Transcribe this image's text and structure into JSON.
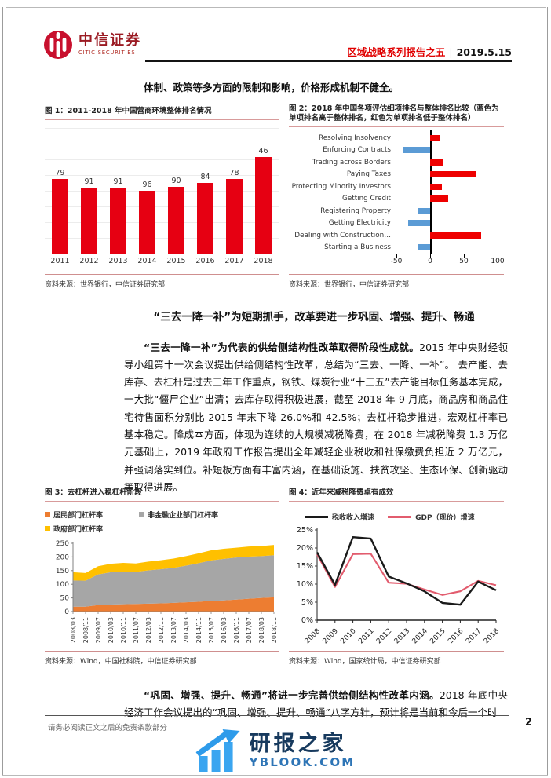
{
  "header": {
    "brand_cn": "中信证券",
    "brand_en": "CITIC SECURITIES",
    "report_series": "区域战略系列报告之五",
    "separator": "|",
    "date": "2019.5.15"
  },
  "intro": "体制、政策等多方面的限制和影响，价格形成机制不健全。",
  "figure1": {
    "caption": "图 1：2011-2018 年中国营商环境整体排名情况",
    "source": "资料来源：世界银行，中信证券研究部"
  },
  "figure2": {
    "caption": "图 2：2018 年中国各项评估细项排名与整体排名比较（蓝色为单项排名高于整体排名，红色为单项排名低于整体排名）",
    "source": "资料来源：世界银行，中信证券研究部"
  },
  "section": {
    "heading": "“三去一降一补”为短期抓手，改革要进一步巩固、增强、提升、畅通",
    "para_bold": "“三去一降一补”为代表的供给侧结构性改革取得阶段性成就。",
    "para_rest": "2015 年中央财经领导小组第十一次会议提出供给侧结构性改革，总结为“三去、一降、一补”。 去产能、去库存、去杠杆是过去三年工作重点，钢铁、煤炭行业“十三五”去产能目标任务基本完成，一大批“僵尸企业”出清；去库存取得积极进展，截至 2018 年 9 月底，商品房和商品住宅待售面积分别比 2015 年末下降 26.0%和 42.5%；去杠杆稳步推进，宏观杠杆率已基本稳定。降成本方面，体现为连续的大规模减税降费，在 2018 年减税降费 1.3 万亿元基础上，2019 年政府工作报告提出全年减轻企业税收和社保缴费负担近 2 万亿元，并强调落实到位。补短板方面有丰富内涵，在基础设施、扶贫攻坚、生态环保、创新驱动等取得进展。"
  },
  "figure3": {
    "caption": "图 3：去杠杆进入稳杠杆阶段",
    "source": "资料来源：Wind，中国社科院，中信证券研究部"
  },
  "figure4": {
    "caption": "图 4：近年来减税降费卓有成效",
    "source": "资料来源：Wind，国家统计局，中信证券研究部"
  },
  "closing": {
    "bold": "“巩固、增强、提升、畅通”将进一步完善供给侧结构性改革内涵。",
    "rest": "2018 年底中央经济工作会议提出的“巩固、增强、提升、畅通”八字方针，预计将是当前和今后一个时"
  },
  "footer": {
    "disclaimer": "请务必阅读正文之后的免责条款部分",
    "page": "2"
  },
  "watermark": {
    "name": "研报之家",
    "domain": "YBLOOK.COM"
  },
  "chart_data": [
    {
      "id": "fig1",
      "type": "bar",
      "title": "2011-2018 年中国营商环境整体排名情况",
      "categories": [
        "2011",
        "2012",
        "2013",
        "2014",
        "2015",
        "2016",
        "2017",
        "2018"
      ],
      "values": [
        79,
        91,
        91,
        96,
        90,
        84,
        78,
        46
      ],
      "bar_color": "#e60012",
      "axis_max": 190,
      "note": "排名数值越小柱越高（反向轴），无y轴刻度，浅灰横向网格线"
    },
    {
      "id": "fig2",
      "type": "bar-horizontal",
      "categories": [
        "Resolving Insolvency",
        "Enforcing Contracts",
        "Trading across Borders",
        "Paying Taxes",
        "Protecting Minority Investors",
        "Getting Credit",
        "Registering Property",
        "Getting Electricity",
        "Dealing with Construction…",
        "Starting a Business"
      ],
      "values": [
        15,
        -40,
        19,
        68,
        18,
        27,
        -19,
        -32,
        75,
        -18
      ],
      "xlim": [
        -52,
        108
      ],
      "xticks": [
        -50,
        0,
        50,
        100
      ],
      "positive_color": "#ee0000",
      "negative_color": "#5b9bd5",
      "note": "单项排名与整体排名之差；蓝色为单项排名高于整体排名，红色为单项排名低于整体排名"
    },
    {
      "id": "fig3",
      "type": "area-stacked",
      "x": [
        "2008/03",
        "2008/11",
        "2009/07",
        "2010/03",
        "2010/11",
        "2011/07",
        "2012/03",
        "2012/11",
        "2013/07",
        "2014/03",
        "2014/11",
        "2015/07",
        "2016/03",
        "2016/11",
        "2017/07",
        "2018/03",
        "2018/11"
      ],
      "series": [
        {
          "name": "居民部门杠杆率",
          "color": "#ed7d31",
          "values": [
            18,
            18,
            24,
            26,
            27,
            28,
            29,
            30,
            32,
            34,
            36,
            39,
            41,
            44,
            47,
            50,
            52
          ]
        },
        {
          "name": "非金融企业部门杠杆率",
          "color": "#a6a6a6",
          "values": [
            96,
            95,
            112,
            118,
            119,
            117,
            122,
            125,
            128,
            134,
            141,
            148,
            152,
            154,
            154,
            153,
            154
          ]
        },
        {
          "name": "政府部门杠杆率",
          "color": "#ffc000",
          "values": [
            30,
            28,
            30,
            31,
            32,
            31,
            32,
            33,
            34,
            35,
            36,
            37,
            37,
            36,
            37,
            37,
            38
          ]
        }
      ],
      "ylim": [
        0,
        250
      ],
      "yticks": [
        0,
        50,
        100,
        150,
        200,
        250
      ],
      "legend_position": "top"
    },
    {
      "id": "fig4",
      "type": "line",
      "x": [
        "2008",
        "2009",
        "2010",
        "2011",
        "2012",
        "2013",
        "2014",
        "2015",
        "2016",
        "2017",
        "2018"
      ],
      "series": [
        {
          "name": "税收收入增速",
          "color": "#1a1a1a",
          "values": [
            18.8,
            9.8,
            23.0,
            22.6,
            12.1,
            10.2,
            8.0,
            4.8,
            4.3,
            10.7,
            8.3
          ]
        },
        {
          "name": "GDP（现价）增速",
          "color": "#e25c6e",
          "values": [
            18.2,
            9.2,
            18.3,
            18.4,
            10.4,
            10.1,
            8.5,
            7.0,
            8.0,
            10.9,
            9.7
          ]
        }
      ],
      "ylim": [
        0,
        25
      ],
      "yticks": [
        "0%",
        "5%",
        "10%",
        "15%",
        "20%",
        "25%"
      ],
      "legend_position": "top"
    }
  ]
}
